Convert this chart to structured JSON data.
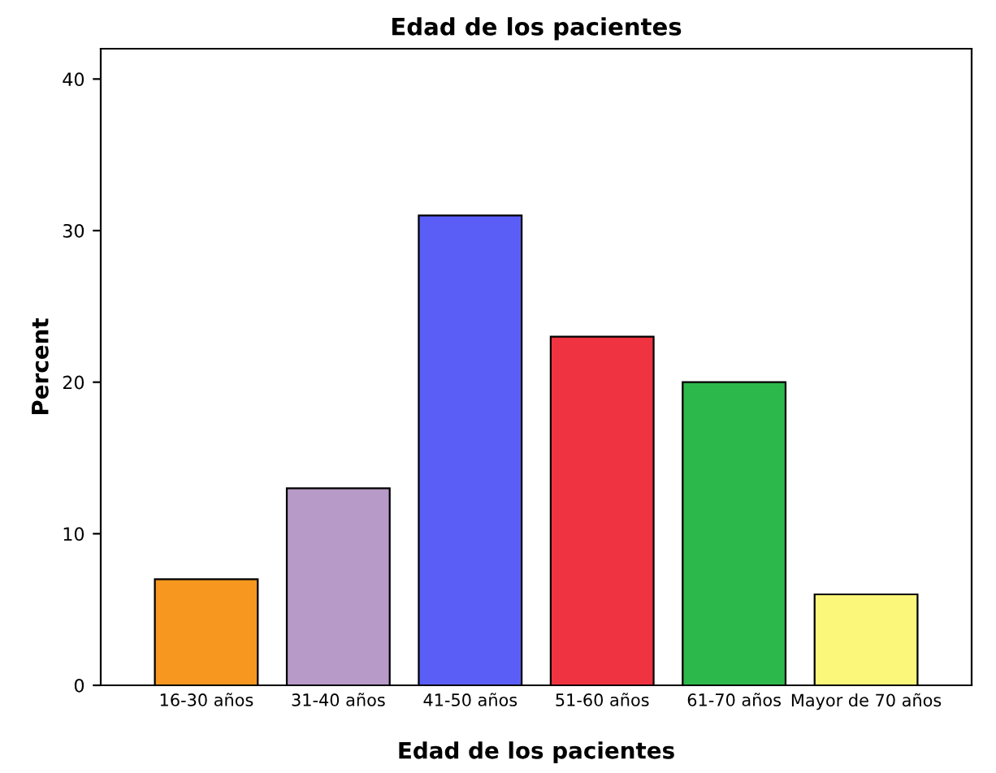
{
  "chart_data": {
    "type": "bar",
    "title": "Edad de los pacientes",
    "xlabel": "Edad de los pacientes",
    "ylabel": "Percent",
    "categories": [
      "16-30 años",
      "31-40 años",
      "41-50 años",
      "51-60 años",
      "61-70 años",
      "Mayor de 70 años"
    ],
    "values": [
      7,
      13,
      31,
      23,
      20,
      6
    ],
    "colors": [
      "#f7971f",
      "#b89ac8",
      "#5a5ef7",
      "#ef3340",
      "#2db84b",
      "#faf77a"
    ],
    "ylim": [
      0,
      42
    ],
    "yticks": [
      0,
      10,
      20,
      30,
      40
    ],
    "grid": false
  }
}
